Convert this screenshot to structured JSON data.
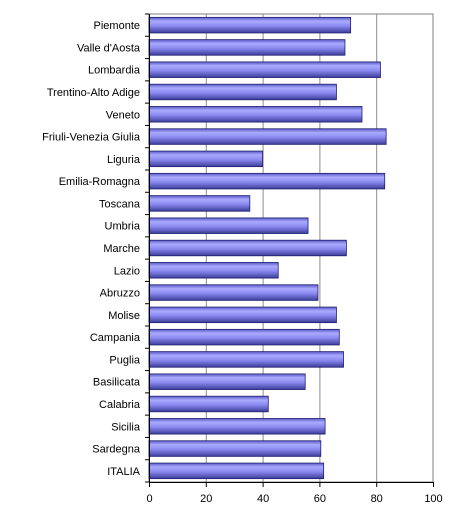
{
  "chart_data": {
    "type": "bar",
    "orientation": "horizontal",
    "title": "",
    "xlabel": "",
    "ylabel": "",
    "categories": [
      "Piemonte",
      "Valle d'Aosta",
      "Lombardia",
      "Trentino-Alto Adige",
      "Veneto",
      "Friuli-Venezia Giulia",
      "Liguria",
      "Emilia-Romagna",
      "Toscana",
      "Umbria",
      "Marche",
      "Lazio",
      "Abruzzo",
      "Molise",
      "Campania",
      "Puglia",
      "Basilicata",
      "Calabria",
      "Sicilia",
      "Sardegna",
      "ITALIA"
    ],
    "values": [
      71,
      69,
      81.5,
      66,
      75,
      83.5,
      40,
      83,
      35.5,
      56,
      69.5,
      45.5,
      59.5,
      66,
      67,
      68.5,
      55,
      42,
      62,
      60.5,
      61.5
    ],
    "xlim": [
      0,
      100
    ],
    "xticks": [
      0,
      20,
      40,
      60,
      80,
      100
    ],
    "grid": "vertical",
    "bar_color": "#8080f0",
    "legend": "none"
  }
}
